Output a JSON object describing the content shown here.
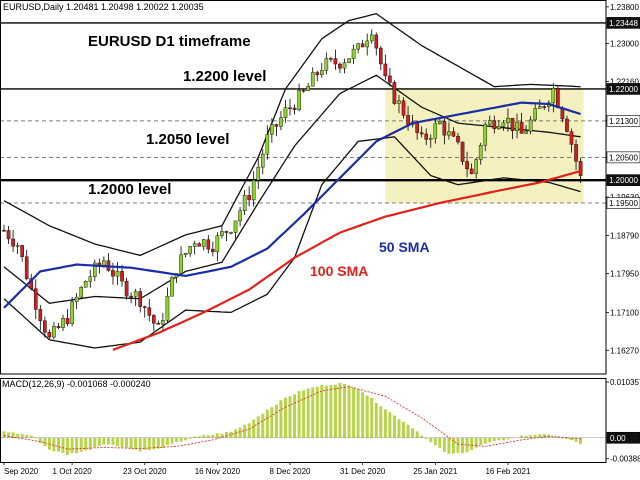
{
  "chart_data": [
    {
      "type": "candlestick",
      "header": "EURUSD,Daily  1.20481 1.20498 1.20022 1.20035",
      "title": "EURUSD D1 timeframe",
      "y_ticks": [
        "1.23800",
        "1.23000",
        "1.22160",
        "1.21300",
        "1.20500",
        "1.19630",
        "1.18790",
        "1.17950",
        "1.17100",
        "1.16270"
      ],
      "y_tick_values": [
        1.238,
        1.23,
        1.2216,
        1.213,
        1.205,
        1.1963,
        1.1879,
        1.1795,
        1.171,
        1.1627
      ],
      "ylim": [
        1.1575,
        1.2395
      ],
      "price_tags": [
        {
          "label": "1.23448",
          "value": 1.23448,
          "style": "dark"
        },
        {
          "label": "1.22000",
          "value": 1.22,
          "style": "dark"
        },
        {
          "label": "1.21300",
          "value": 1.213,
          "style": "light"
        },
        {
          "label": "1.20500",
          "value": 1.205,
          "style": "light"
        },
        {
          "label": "1.20000",
          "value": 1.2,
          "style": "dark"
        },
        {
          "label": "1.19500",
          "value": 1.195,
          "style": "light"
        }
      ],
      "levels": [
        {
          "label": "1.2200 level",
          "value": 1.22,
          "style": "solid"
        },
        {
          "label": "",
          "value": 1.23448,
          "style": "solid"
        },
        {
          "label": "",
          "value": 1.213,
          "style": "dashed"
        },
        {
          "label": "1.2050 level",
          "value": 1.205,
          "style": "dashed"
        },
        {
          "label": "1.2000 level",
          "value": 1.2,
          "style": "thick"
        },
        {
          "label": "",
          "value": 1.195,
          "style": "dashed"
        }
      ],
      "x_tick_labels": [
        "Sep 2020",
        "1 Oct 2020",
        "23 Oct 2020",
        "16 Nov 2020",
        "8 Dec 2020",
        "31 Dec 2020",
        "25 Jan 2021",
        "16 Feb 2021"
      ],
      "x_tick_bar_index": [
        0,
        15,
        31,
        47,
        63,
        79,
        95,
        111
      ],
      "series_labels": [
        {
          "name": "50 SMA",
          "color": "#1a2ca8"
        },
        {
          "name": "100 SMA",
          "color": "#e0201a"
        }
      ],
      "consolidation_zone": {
        "y_top": 1.22,
        "y_bottom": 1.195,
        "x_start_bar": 84,
        "x_end_bar": 127,
        "color": "#f5f0c0"
      },
      "ohlc_anchors": [
        {
          "bar": 0,
          "close": 1.189
        },
        {
          "bar": 3,
          "close": 1.186
        },
        {
          "bar": 6,
          "close": 1.176
        },
        {
          "bar": 10,
          "close": 1.165
        },
        {
          "bar": 14,
          "close": 1.17
        },
        {
          "bar": 18,
          "close": 1.178
        },
        {
          "bar": 22,
          "close": 1.1825
        },
        {
          "bar": 26,
          "close": 1.177
        },
        {
          "bar": 30,
          "close": 1.174
        },
        {
          "bar": 34,
          "close": 1.167
        },
        {
          "bar": 38,
          "close": 1.181
        },
        {
          "bar": 42,
          "close": 1.187
        },
        {
          "bar": 46,
          "close": 1.186
        },
        {
          "bar": 50,
          "close": 1.19
        },
        {
          "bar": 54,
          "close": 1.197
        },
        {
          "bar": 58,
          "close": 1.209
        },
        {
          "bar": 62,
          "close": 1.215
        },
        {
          "bar": 66,
          "close": 1.219
        },
        {
          "bar": 70,
          "close": 1.225
        },
        {
          "bar": 74,
          "close": 1.226
        },
        {
          "bar": 78,
          "close": 1.2285
        },
        {
          "bar": 81,
          "close": 1.2335
        },
        {
          "bar": 84,
          "close": 1.2215
        },
        {
          "bar": 88,
          "close": 1.215
        },
        {
          "bar": 92,
          "close": 1.2085
        },
        {
          "bar": 96,
          "close": 1.2125
        },
        {
          "bar": 100,
          "close": 1.207
        },
        {
          "bar": 103,
          "close": 1.201
        },
        {
          "bar": 106,
          "close": 1.212
        },
        {
          "bar": 110,
          "close": 1.214
        },
        {
          "bar": 114,
          "close": 1.21
        },
        {
          "bar": 118,
          "close": 1.2155
        },
        {
          "bar": 121,
          "close": 1.22
        },
        {
          "bar": 124,
          "close": 1.212
        },
        {
          "bar": 127,
          "close": 1.2004
        }
      ],
      "sma50": [
        {
          "bar": 0,
          "value": 1.172
        },
        {
          "bar": 8,
          "value": 1.18
        },
        {
          "bar": 16,
          "value": 1.1815
        },
        {
          "bar": 28,
          "value": 1.1808
        },
        {
          "bar": 40,
          "value": 1.179
        },
        {
          "bar": 50,
          "value": 1.181
        },
        {
          "bar": 58,
          "value": 1.185
        },
        {
          "bar": 66,
          "value": 1.1925
        },
        {
          "bar": 74,
          "value": 1.2005
        },
        {
          "bar": 82,
          "value": 1.2085
        },
        {
          "bar": 90,
          "value": 1.2125
        },
        {
          "bar": 98,
          "value": 1.214
        },
        {
          "bar": 106,
          "value": 1.2155
        },
        {
          "bar": 114,
          "value": 1.217
        },
        {
          "bar": 120,
          "value": 1.2167
        },
        {
          "bar": 127,
          "value": 1.2145
        }
      ],
      "sma100": [
        {
          "bar": 24,
          "value": 1.1628
        },
        {
          "bar": 34,
          "value": 1.1665
        },
        {
          "bar": 44,
          "value": 1.171
        },
        {
          "bar": 54,
          "value": 1.176
        },
        {
          "bar": 64,
          "value": 1.183
        },
        {
          "bar": 74,
          "value": 1.1885
        },
        {
          "bar": 84,
          "value": 1.192
        },
        {
          "bar": 96,
          "value": 1.195
        },
        {
          "bar": 108,
          "value": 1.1975
        },
        {
          "bar": 118,
          "value": 1.1995
        },
        {
          "bar": 127,
          "value": 1.202
        }
      ],
      "bollinger_upper": [
        {
          "bar": 0,
          "value": 1.1955
        },
        {
          "bar": 10,
          "value": 1.19
        },
        {
          "bar": 20,
          "value": 1.186
        },
        {
          "bar": 30,
          "value": 1.1835
        },
        {
          "bar": 40,
          "value": 1.188
        },
        {
          "bar": 48,
          "value": 1.19
        },
        {
          "bar": 56,
          "value": 1.205
        },
        {
          "bar": 62,
          "value": 1.22
        },
        {
          "bar": 70,
          "value": 1.231
        },
        {
          "bar": 76,
          "value": 1.235
        },
        {
          "bar": 82,
          "value": 1.2365
        },
        {
          "bar": 92,
          "value": 1.2295
        },
        {
          "bar": 100,
          "value": 1.225
        },
        {
          "bar": 108,
          "value": 1.2205
        },
        {
          "bar": 116,
          "value": 1.221
        },
        {
          "bar": 127,
          "value": 1.2205
        }
      ],
      "bollinger_middle": [
        {
          "bar": 0,
          "value": 1.181
        },
        {
          "bar": 10,
          "value": 1.173
        },
        {
          "bar": 20,
          "value": 1.1745
        },
        {
          "bar": 30,
          "value": 1.174
        },
        {
          "bar": 40,
          "value": 1.18
        },
        {
          "bar": 48,
          "value": 1.182
        },
        {
          "bar": 56,
          "value": 1.195
        },
        {
          "bar": 64,
          "value": 1.2075
        },
        {
          "bar": 74,
          "value": 1.219
        },
        {
          "bar": 82,
          "value": 1.223
        },
        {
          "bar": 92,
          "value": 1.216
        },
        {
          "bar": 100,
          "value": 1.2125
        },
        {
          "bar": 110,
          "value": 1.2115
        },
        {
          "bar": 120,
          "value": 1.2105
        },
        {
          "bar": 127,
          "value": 1.2095
        }
      ],
      "bollinger_lower": [
        {
          "bar": 0,
          "value": 1.174
        },
        {
          "bar": 10,
          "value": 1.165
        },
        {
          "bar": 20,
          "value": 1.1632
        },
        {
          "bar": 30,
          "value": 1.1645
        },
        {
          "bar": 40,
          "value": 1.1715
        },
        {
          "bar": 50,
          "value": 1.171
        },
        {
          "bar": 58,
          "value": 1.175
        },
        {
          "bar": 64,
          "value": 1.183
        },
        {
          "bar": 70,
          "value": 1.199
        },
        {
          "bar": 78,
          "value": 1.2085
        },
        {
          "bar": 86,
          "value": 1.2095
        },
        {
          "bar": 94,
          "value": 1.201
        },
        {
          "bar": 100,
          "value": 1.199
        },
        {
          "bar": 110,
          "value": 1.2005
        },
        {
          "bar": 120,
          "value": 1.1995
        },
        {
          "bar": 127,
          "value": 1.1975
        }
      ]
    },
    {
      "type": "bar",
      "header": "MACD(12,26,9) -0.001068 -0.000240",
      "y_ticks": [
        "0.010357",
        "0.00",
        "-0.003884"
      ],
      "y_tick_values": [
        0.010357,
        0.0,
        -0.003884
      ],
      "ylim": [
        -0.0045,
        0.0111
      ],
      "histogram_anchors": [
        {
          "bar": 0,
          "value": 0.0012
        },
        {
          "bar": 6,
          "value": 0.0004
        },
        {
          "bar": 10,
          "value": -0.0022
        },
        {
          "bar": 14,
          "value": -0.0031
        },
        {
          "bar": 18,
          "value": -0.0024
        },
        {
          "bar": 22,
          "value": -0.0011
        },
        {
          "bar": 26,
          "value": -0.0017
        },
        {
          "bar": 30,
          "value": -0.0024
        },
        {
          "bar": 34,
          "value": -0.0021
        },
        {
          "bar": 38,
          "value": -0.0009
        },
        {
          "bar": 42,
          "value": 0.0001
        },
        {
          "bar": 46,
          "value": 0.0006
        },
        {
          "bar": 50,
          "value": 0.0011
        },
        {
          "bar": 54,
          "value": 0.0028
        },
        {
          "bar": 58,
          "value": 0.0052
        },
        {
          "bar": 62,
          "value": 0.0074
        },
        {
          "bar": 66,
          "value": 0.0089
        },
        {
          "bar": 70,
          "value": 0.0097
        },
        {
          "bar": 74,
          "value": 0.0101
        },
        {
          "bar": 78,
          "value": 0.0092
        },
        {
          "bar": 82,
          "value": 0.0066
        },
        {
          "bar": 86,
          "value": 0.0041
        },
        {
          "bar": 90,
          "value": 0.0019
        },
        {
          "bar": 94,
          "value": -0.0009
        },
        {
          "bar": 98,
          "value": -0.0031
        },
        {
          "bar": 102,
          "value": -0.0026
        },
        {
          "bar": 106,
          "value": -0.0011
        },
        {
          "bar": 110,
          "value": -0.0004
        },
        {
          "bar": 114,
          "value": 0.0003
        },
        {
          "bar": 118,
          "value": 0.0007
        },
        {
          "bar": 122,
          "value": 0.0002
        },
        {
          "bar": 127,
          "value": -0.0011
        }
      ],
      "signal_anchors": [
        {
          "bar": 0,
          "value": 0.0004
        },
        {
          "bar": 8,
          "value": -0.0007
        },
        {
          "bar": 14,
          "value": -0.0021
        },
        {
          "bar": 22,
          "value": -0.0018
        },
        {
          "bar": 30,
          "value": -0.002
        },
        {
          "bar": 38,
          "value": -0.0016
        },
        {
          "bar": 46,
          "value": -0.0004
        },
        {
          "bar": 54,
          "value": 0.0016
        },
        {
          "bar": 62,
          "value": 0.0057
        },
        {
          "bar": 70,
          "value": 0.0087
        },
        {
          "bar": 76,
          "value": 0.0095
        },
        {
          "bar": 84,
          "value": 0.0077
        },
        {
          "bar": 92,
          "value": 0.0037
        },
        {
          "bar": 100,
          "value": -0.0012
        },
        {
          "bar": 106,
          "value": -0.0016
        },
        {
          "bar": 114,
          "value": -0.0004
        },
        {
          "bar": 120,
          "value": 0.0003
        },
        {
          "bar": 127,
          "value": -0.0002
        }
      ],
      "colors": {
        "histogram": "#b7d44a",
        "signal": "#e0201a"
      }
    }
  ]
}
